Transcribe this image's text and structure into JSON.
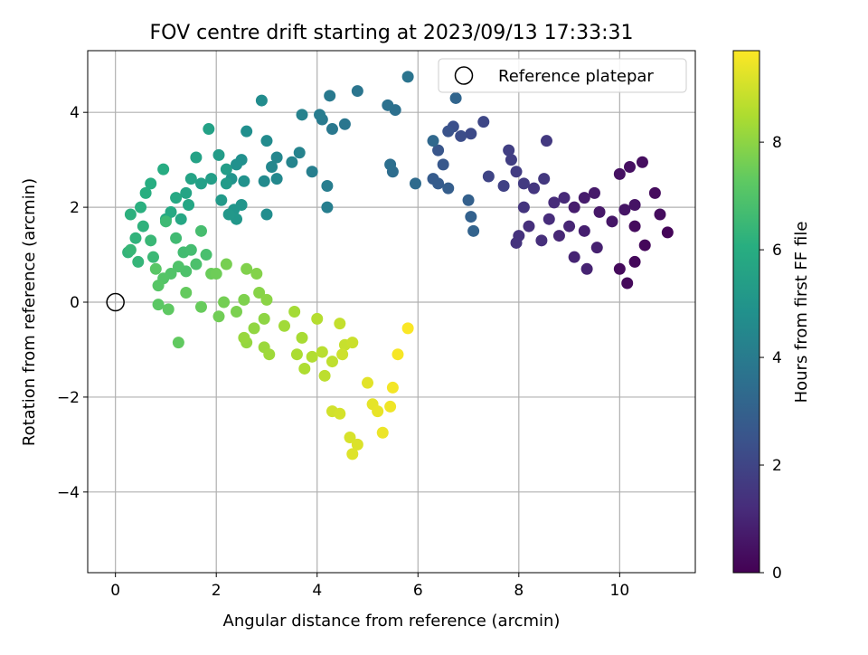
{
  "chart_data": {
    "type": "scatter",
    "title": "FOV centre drift starting at 2023/09/13 17:33:31",
    "xlabel": "Angular distance from reference (arcmin)",
    "ylabel": "Rotation from reference (arcmin)",
    "xlim": [
      -0.55,
      11.5
    ],
    "ylim": [
      -5.7,
      5.3
    ],
    "xticks": [
      0,
      2,
      4,
      6,
      8,
      10
    ],
    "yticks": [
      -4,
      -2,
      0,
      2,
      4
    ],
    "grid": true,
    "colormap": "viridis",
    "colorbar": {
      "label": "Hours from first FF file",
      "range": [
        0,
        9.7
      ],
      "ticks": [
        0,
        2,
        4,
        6,
        8
      ]
    },
    "legend": {
      "position": "top-right",
      "entries": [
        {
          "label": "Reference platepar",
          "marker": "open-circle"
        }
      ]
    },
    "reference_point": {
      "x": 0,
      "y": 0
    },
    "points": [
      [
        10.95,
        1.47,
        0.12
      ],
      [
        10.5,
        1.2,
        0.18
      ],
      [
        10.3,
        0.85,
        0.2
      ],
      [
        10.15,
        0.4,
        0.22
      ],
      [
        10.0,
        0.7,
        0.25
      ],
      [
        10.3,
        1.6,
        0.28
      ],
      [
        10.7,
        2.3,
        0.3
      ],
      [
        10.8,
        1.85,
        0.33
      ],
      [
        10.45,
        2.95,
        0.36
      ],
      [
        10.2,
        2.85,
        0.4
      ],
      [
        10.0,
        2.7,
        0.45
      ],
      [
        10.3,
        2.05,
        0.5
      ],
      [
        10.1,
        1.95,
        0.55
      ],
      [
        9.85,
        1.7,
        0.6
      ],
      [
        9.6,
        1.9,
        0.65
      ],
      [
        9.5,
        2.3,
        0.7
      ],
      [
        9.3,
        2.2,
        0.75
      ],
      [
        9.1,
        2.0,
        0.8
      ],
      [
        9.3,
        1.5,
        0.85
      ],
      [
        9.55,
        1.15,
        0.9
      ],
      [
        9.35,
        0.7,
        0.95
      ],
      [
        9.1,
        0.95,
        1.0
      ],
      [
        9.0,
        1.6,
        1.05
      ],
      [
        8.8,
        1.4,
        1.1
      ],
      [
        8.9,
        2.2,
        1.15
      ],
      [
        8.7,
        2.1,
        1.2
      ],
      [
        8.6,
        1.75,
        1.25
      ],
      [
        8.45,
        1.3,
        1.3
      ],
      [
        8.2,
        1.6,
        1.35
      ],
      [
        8.0,
        1.4,
        1.4
      ],
      [
        7.95,
        1.25,
        1.45
      ],
      [
        8.1,
        2.0,
        1.5
      ],
      [
        8.3,
        2.4,
        1.55
      ],
      [
        8.5,
        2.6,
        1.6
      ],
      [
        8.55,
        3.4,
        1.65
      ],
      [
        8.1,
        2.5,
        1.7
      ],
      [
        7.95,
        2.75,
        1.75
      ],
      [
        7.85,
        3.0,
        1.8
      ],
      [
        7.8,
        3.2,
        1.85
      ],
      [
        7.7,
        2.45,
        1.9
      ],
      [
        7.4,
        2.65,
        2.0
      ],
      [
        7.3,
        3.8,
        2.1
      ],
      [
        7.05,
        3.55,
        2.2
      ],
      [
        6.85,
        3.5,
        2.3
      ],
      [
        6.7,
        3.7,
        2.4
      ],
      [
        6.6,
        3.6,
        2.5
      ],
      [
        6.4,
        3.2,
        2.6
      ],
      [
        6.5,
        2.9,
        2.7
      ],
      [
        6.3,
        2.6,
        2.8
      ],
      [
        6.4,
        2.5,
        2.85
      ],
      [
        6.6,
        2.4,
        2.9
      ],
      [
        7.0,
        2.15,
        3.0
      ],
      [
        7.05,
        1.8,
        3.05
      ],
      [
        7.1,
        1.5,
        3.1
      ],
      [
        6.75,
        4.3,
        3.2
      ],
      [
        6.3,
        3.4,
        3.3
      ],
      [
        5.95,
        2.5,
        3.4
      ],
      [
        5.5,
        2.75,
        3.5
      ],
      [
        5.45,
        2.9,
        3.55
      ],
      [
        5.55,
        4.05,
        3.6
      ],
      [
        5.4,
        4.15,
        3.65
      ],
      [
        5.8,
        4.75,
        3.75
      ],
      [
        4.8,
        4.45,
        3.8
      ],
      [
        4.55,
        3.75,
        3.85
      ],
      [
        4.3,
        3.65,
        3.9
      ],
      [
        4.25,
        4.35,
        3.95
      ],
      [
        4.1,
        3.85,
        4.0
      ],
      [
        4.05,
        3.95,
        4.05
      ],
      [
        4.2,
        2.45,
        4.1
      ],
      [
        4.2,
        2.0,
        4.15
      ],
      [
        3.9,
        2.75,
        4.2
      ],
      [
        3.7,
        3.95,
        4.3
      ],
      [
        3.65,
        3.15,
        4.35
      ],
      [
        3.5,
        2.95,
        4.4
      ],
      [
        3.2,
        3.05,
        4.45
      ],
      [
        3.1,
        2.85,
        4.5
      ],
      [
        3.2,
        2.6,
        4.55
      ],
      [
        2.95,
        2.55,
        4.6
      ],
      [
        3.0,
        3.4,
        4.65
      ],
      [
        2.9,
        4.25,
        4.7
      ],
      [
        3.0,
        1.85,
        4.75
      ],
      [
        2.6,
        3.6,
        4.8
      ],
      [
        2.5,
        3.0,
        4.85
      ],
      [
        2.4,
        2.9,
        4.9
      ],
      [
        2.55,
        2.55,
        4.95
      ],
      [
        2.3,
        2.6,
        5.0
      ],
      [
        2.5,
        2.05,
        5.05
      ],
      [
        2.35,
        1.95,
        5.1
      ],
      [
        2.4,
        1.75,
        5.15
      ],
      [
        2.25,
        1.85,
        5.2
      ],
      [
        2.1,
        2.15,
        5.25
      ],
      [
        2.2,
        2.5,
        5.3
      ],
      [
        2.05,
        3.1,
        5.35
      ],
      [
        2.2,
        2.8,
        5.4
      ],
      [
        1.9,
        2.6,
        5.45
      ],
      [
        1.7,
        2.5,
        5.5
      ],
      [
        1.85,
        3.65,
        5.55
      ],
      [
        1.6,
        3.05,
        5.6
      ],
      [
        1.5,
        2.6,
        5.65
      ],
      [
        1.4,
        2.3,
        5.7
      ],
      [
        1.45,
        2.05,
        5.75
      ],
      [
        1.3,
        1.75,
        5.8
      ],
      [
        1.2,
        2.2,
        5.85
      ],
      [
        1.1,
        1.9,
        5.9
      ],
      [
        1.0,
        1.75,
        5.95
      ],
      [
        0.95,
        2.8,
        6.0
      ],
      [
        0.7,
        2.5,
        6.05
      ],
      [
        0.6,
        2.3,
        6.1
      ],
      [
        0.5,
        2.0,
        6.15
      ],
      [
        0.3,
        1.85,
        6.2
      ],
      [
        0.55,
        1.6,
        6.25
      ],
      [
        0.4,
        1.35,
        6.3
      ],
      [
        0.25,
        1.05,
        6.35
      ],
      [
        0.45,
        0.85,
        6.4
      ],
      [
        0.3,
        1.1,
        6.45
      ],
      [
        0.7,
        1.3,
        6.5
      ],
      [
        0.75,
        0.95,
        6.55
      ],
      [
        1.0,
        1.7,
        6.6
      ],
      [
        1.2,
        1.35,
        6.65
      ],
      [
        1.35,
        1.05,
        6.7
      ],
      [
        1.5,
        1.1,
        6.75
      ],
      [
        1.7,
        1.5,
        6.8
      ],
      [
        1.8,
        1.0,
        6.85
      ],
      [
        1.6,
        0.8,
        6.9
      ],
      [
        1.4,
        0.65,
        6.95
      ],
      [
        1.25,
        0.75,
        7.0
      ],
      [
        1.1,
        0.6,
        7.05
      ],
      [
        0.95,
        0.5,
        7.1
      ],
      [
        0.85,
        0.35,
        7.15
      ],
      [
        0.8,
        0.7,
        7.2
      ],
      [
        0.85,
        -0.05,
        7.25
      ],
      [
        1.05,
        -0.15,
        7.3
      ],
      [
        1.25,
        -0.85,
        7.35
      ],
      [
        1.4,
        0.2,
        7.4
      ],
      [
        1.7,
        -0.1,
        7.45
      ],
      [
        1.9,
        0.6,
        7.5
      ],
      [
        2.0,
        0.6,
        7.55
      ],
      [
        2.05,
        -0.3,
        7.6
      ],
      [
        2.15,
        0.0,
        7.65
      ],
      [
        2.2,
        0.8,
        7.7
      ],
      [
        2.4,
        -0.2,
        7.75
      ],
      [
        2.55,
        0.05,
        7.8
      ],
      [
        2.6,
        0.7,
        7.85
      ],
      [
        2.8,
        0.6,
        7.9
      ],
      [
        2.85,
        0.2,
        7.95
      ],
      [
        3.0,
        0.05,
        8.0
      ],
      [
        2.95,
        -0.35,
        8.05
      ],
      [
        2.75,
        -0.55,
        8.1
      ],
      [
        2.6,
        -0.85,
        8.15
      ],
      [
        2.55,
        -0.75,
        8.2
      ],
      [
        2.95,
        -0.95,
        8.25
      ],
      [
        3.05,
        -1.1,
        8.3
      ],
      [
        3.35,
        -0.5,
        8.35
      ],
      [
        3.55,
        -0.2,
        8.4
      ],
      [
        3.7,
        -0.75,
        8.45
      ],
      [
        3.6,
        -1.1,
        8.5
      ],
      [
        3.75,
        -1.4,
        8.55
      ],
      [
        3.9,
        -1.15,
        8.6
      ],
      [
        4.0,
        -0.35,
        8.65
      ],
      [
        4.1,
        -1.05,
        8.7
      ],
      [
        4.15,
        -1.55,
        8.75
      ],
      [
        4.3,
        -1.25,
        8.8
      ],
      [
        4.45,
        -0.45,
        8.85
      ],
      [
        4.55,
        -0.9,
        8.9
      ],
      [
        4.7,
        -0.85,
        8.95
      ],
      [
        4.5,
        -1.1,
        9.0
      ],
      [
        4.3,
        -2.3,
        9.05
      ],
      [
        4.45,
        -2.35,
        9.1
      ],
      [
        4.65,
        -2.85,
        9.15
      ],
      [
        4.8,
        -3.0,
        9.2
      ],
      [
        4.7,
        -3.2,
        9.25
      ],
      [
        5.0,
        -1.7,
        9.3
      ],
      [
        5.1,
        -2.15,
        9.35
      ],
      [
        5.2,
        -2.3,
        9.4
      ],
      [
        5.3,
        -2.75,
        9.45
      ],
      [
        5.45,
        -2.2,
        9.5
      ],
      [
        5.5,
        -1.8,
        9.55
      ],
      [
        5.6,
        -1.1,
        9.6
      ],
      [
        5.8,
        -0.55,
        9.65
      ]
    ]
  }
}
